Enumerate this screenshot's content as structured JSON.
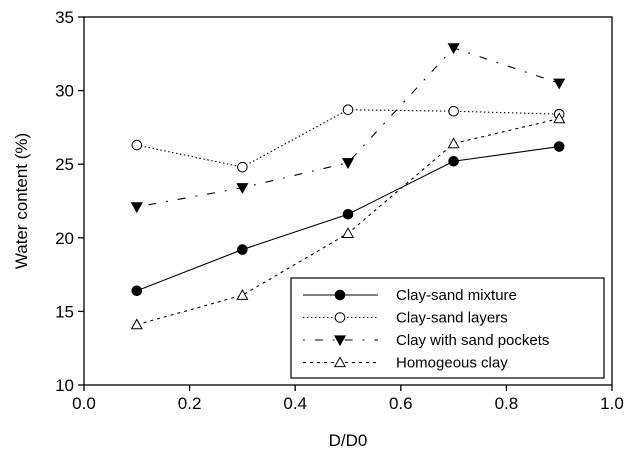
{
  "chart_data": {
    "type": "line",
    "xlabel": "D/D0",
    "ylabel": "Water content (%)",
    "xlim": [
      0.0,
      1.0
    ],
    "ylim": [
      10,
      35
    ],
    "x_ticks": [
      "0.0",
      "0.2",
      "0.4",
      "0.6",
      "0.8",
      "1.0"
    ],
    "y_ticks": [
      "10",
      "15",
      "20",
      "25",
      "30",
      "35"
    ],
    "grid": false,
    "legend_position": "bottom-right",
    "series": [
      {
        "name": "Clay-sand mixture",
        "marker": "filled-circle",
        "line_style": "solid",
        "x": [
          0.1,
          0.3,
          0.5,
          0.7,
          0.9
        ],
        "y": [
          16.4,
          19.2,
          21.6,
          25.2,
          26.2
        ]
      },
      {
        "name": "Clay-sand layers",
        "marker": "open-circle",
        "line_style": "dotted",
        "x": [
          0.1,
          0.3,
          0.5,
          0.7,
          0.9
        ],
        "y": [
          26.3,
          24.8,
          28.7,
          28.6,
          28.4
        ]
      },
      {
        "name": "Clay with sand pockets",
        "marker": "filled-triangle-down",
        "line_style": "dash-dot",
        "x": [
          0.1,
          0.3,
          0.5,
          0.7,
          0.9
        ],
        "y": [
          22.1,
          23.4,
          25.1,
          32.9,
          30.5
        ]
      },
      {
        "name": "Homogeous clay",
        "marker": "open-triangle-up",
        "line_style": "short-dash",
        "x": [
          0.1,
          0.3,
          0.5,
          0.7,
          0.9
        ],
        "y": [
          14.1,
          16.1,
          20.3,
          26.4,
          28.1
        ]
      }
    ]
  }
}
